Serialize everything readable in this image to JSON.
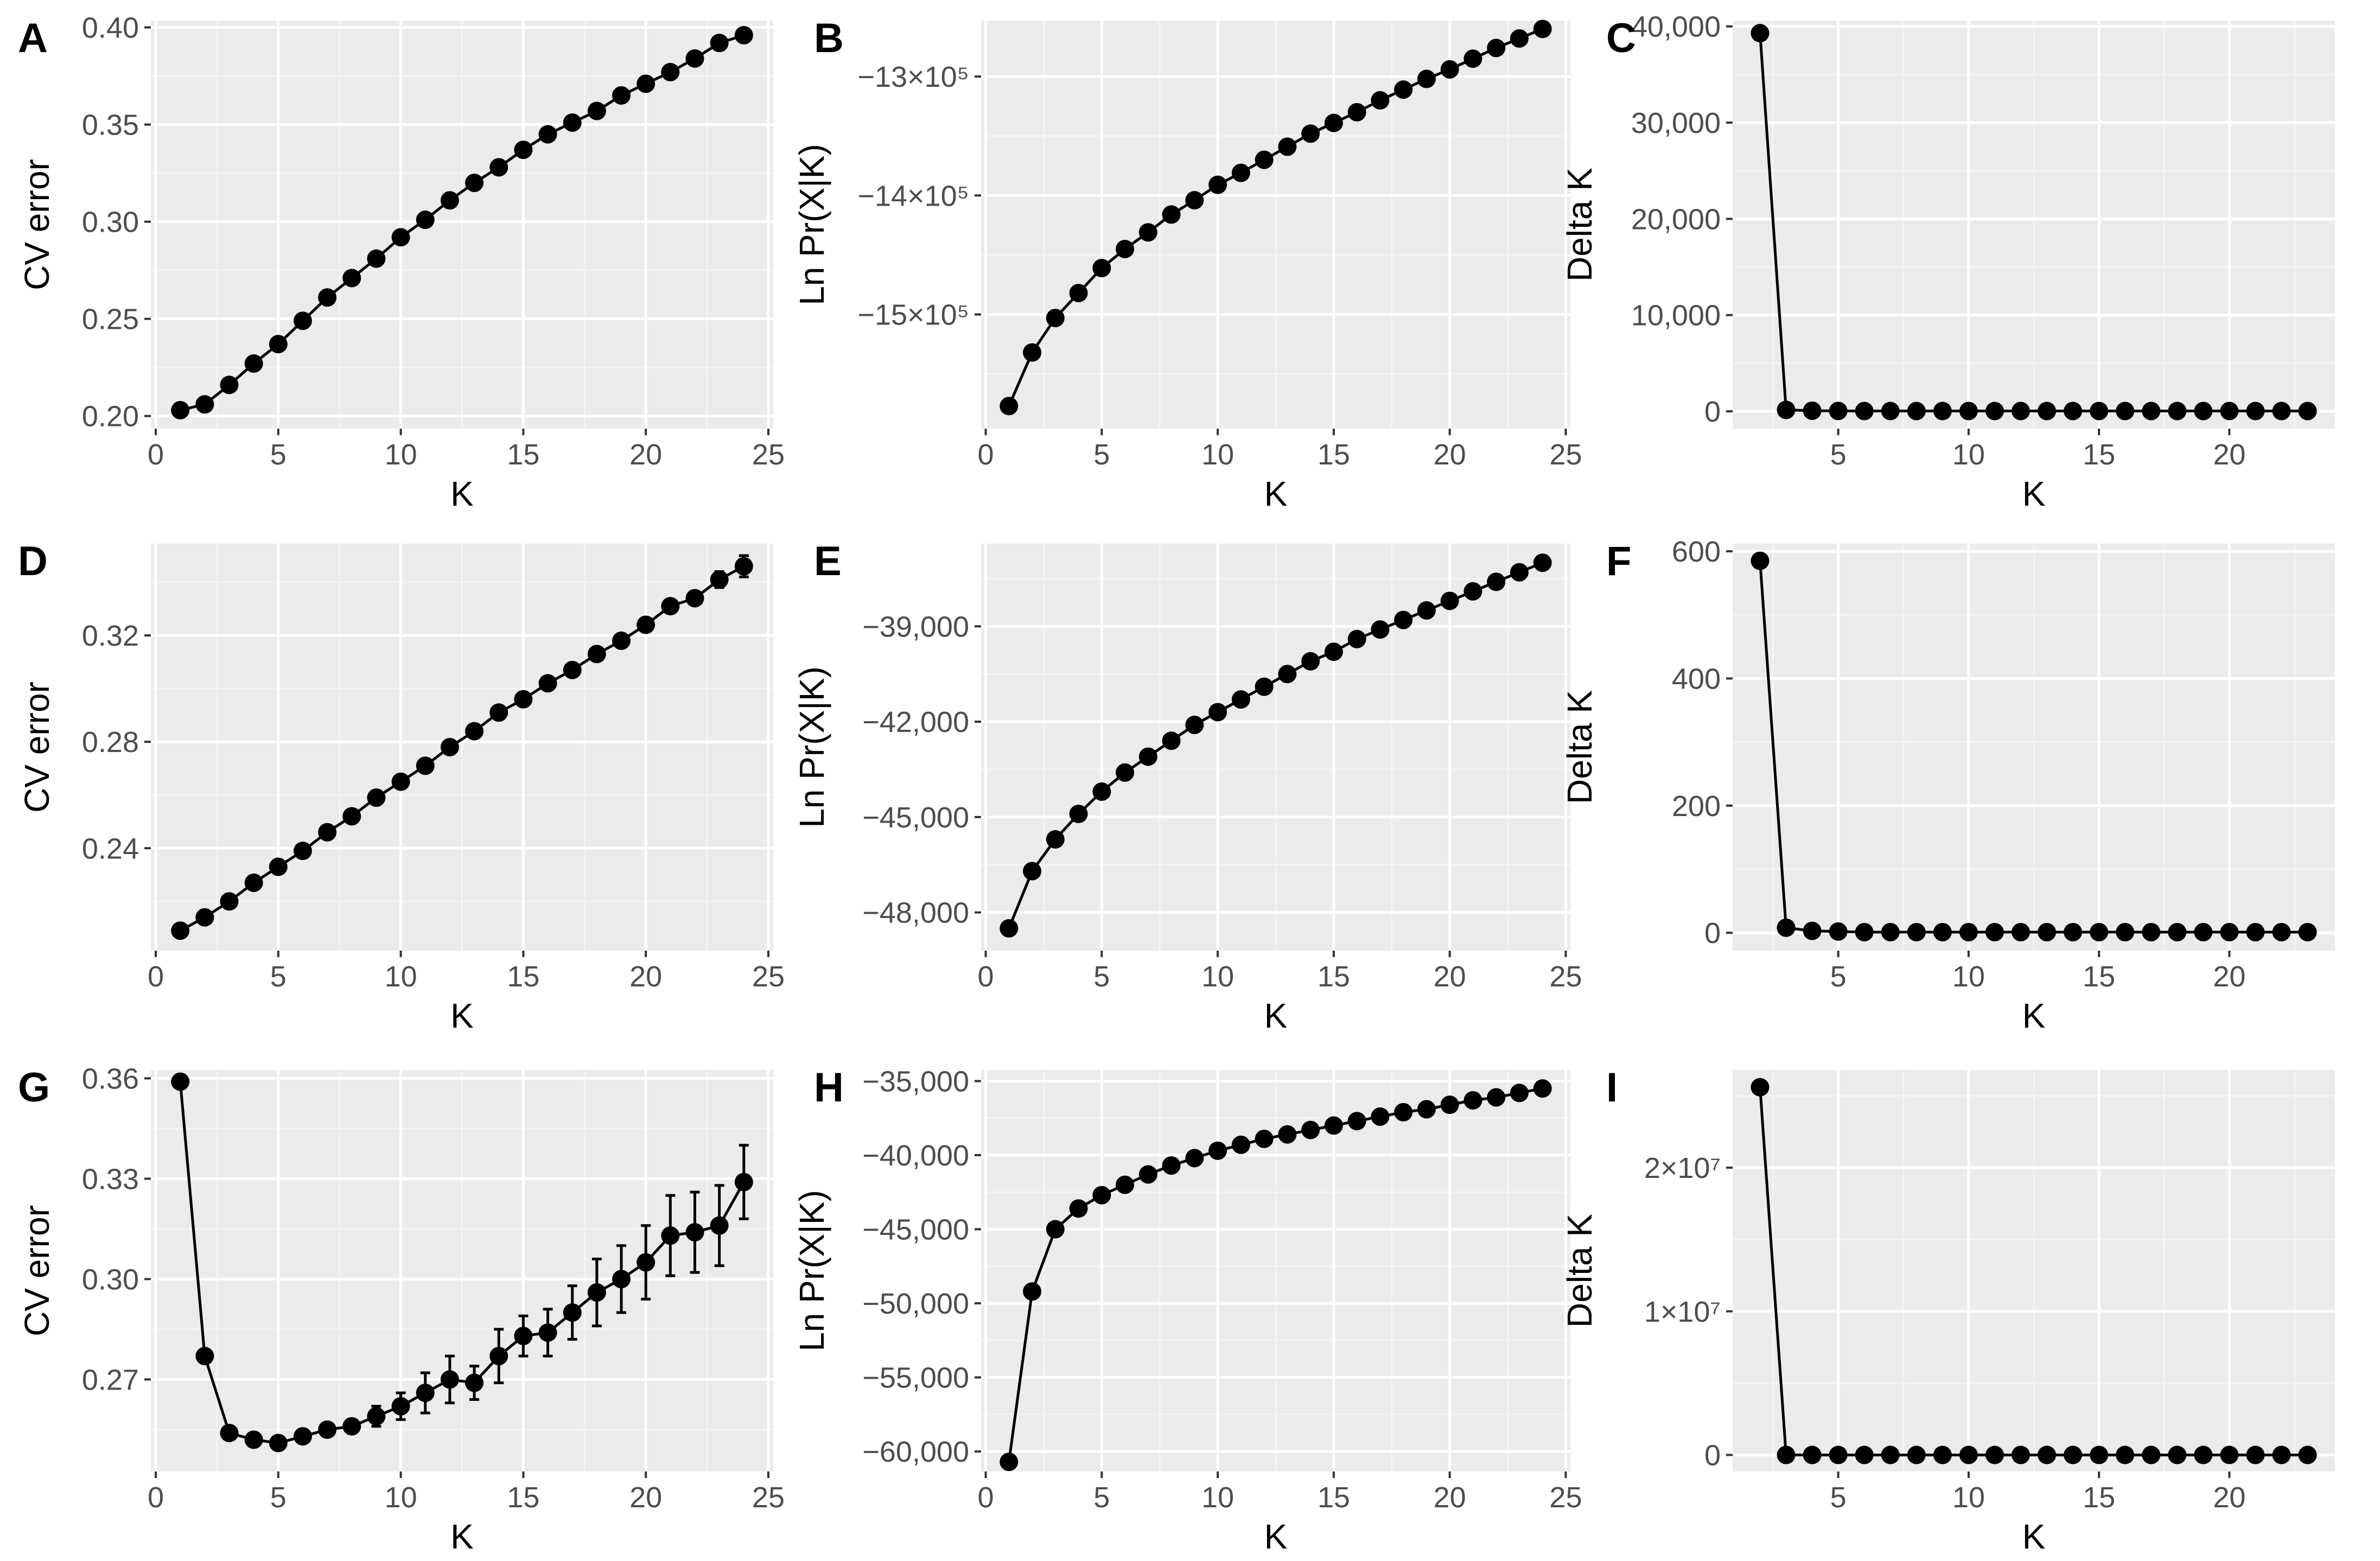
{
  "colors": {
    "panel_bg": "#ebebeb",
    "grid_major": "#ffffff",
    "grid_minor": "#f4f4f4",
    "mark": "#000000",
    "tick_text": "#4d4d4d"
  },
  "chart_data": [
    {
      "panel": "A",
      "type": "line",
      "xlabel": "K",
      "ylabel": "CV error",
      "xlim": [
        -0.2,
        25.2
      ],
      "ylim": [
        0.1935,
        0.4035
      ],
      "xticks": [
        0,
        5,
        10,
        15,
        20,
        25
      ],
      "xtick_labels": [
        "0",
        "5",
        "10",
        "15",
        "20",
        "25"
      ],
      "yticks": [
        0.2,
        0.25,
        0.3,
        0.35,
        0.4
      ],
      "ytick_labels": [
        "0.20",
        "0.25",
        "0.30",
        "0.35",
        "0.40"
      ],
      "x": [
        1,
        2,
        3,
        4,
        5,
        6,
        7,
        8,
        9,
        10,
        11,
        12,
        13,
        14,
        15,
        16,
        17,
        18,
        19,
        20,
        21,
        22,
        23,
        24
      ],
      "y": [
        0.203,
        0.206,
        0.216,
        0.227,
        0.237,
        0.249,
        0.261,
        0.271,
        0.281,
        0.292,
        0.301,
        0.311,
        0.32,
        0.328,
        0.337,
        0.345,
        0.351,
        0.357,
        0.365,
        0.371,
        0.377,
        0.384,
        0.392,
        0.396
      ]
    },
    {
      "panel": "B",
      "type": "line",
      "xlabel": "K",
      "ylabel": "Ln Pr(X|K)",
      "xlim": [
        -0.2,
        25.2
      ],
      "ylim": [
        -1596000,
        -1253000
      ],
      "xticks": [
        0,
        5,
        10,
        15,
        20,
        25
      ],
      "xtick_labels": [
        "0",
        "5",
        "10",
        "15",
        "20",
        "25"
      ],
      "yticks": [
        -1300000,
        -1400000,
        -1500000
      ],
      "ytick_labels": [
        "−13×10⁵",
        "−14×10⁵",
        "−15×10⁵"
      ],
      "x": [
        1,
        2,
        3,
        4,
        5,
        6,
        7,
        8,
        9,
        10,
        11,
        12,
        13,
        14,
        15,
        16,
        17,
        18,
        19,
        20,
        21,
        22,
        23,
        24
      ],
      "y": [
        -1577000,
        -1532000,
        -1503000,
        -1482000,
        -1461000,
        -1445000,
        -1431000,
        -1416000,
        -1404000,
        -1391000,
        -1381000,
        -1370000,
        -1359000,
        -1348000,
        -1339000,
        -1330000,
        -1320000,
        -1311000,
        -1302000,
        -1294000,
        -1285000,
        -1276000,
        -1268000,
        -1260000
      ]
    },
    {
      "panel": "C",
      "type": "line",
      "xlabel": "K",
      "ylabel": "Delta K",
      "xlim": [
        0.95,
        24.05
      ],
      "ylim": [
        -1800,
        40600
      ],
      "xticks": [
        5,
        10,
        15,
        20
      ],
      "xtick_labels": [
        "5",
        "10",
        "15",
        "20"
      ],
      "yticks": [
        0,
        10000,
        20000,
        30000,
        40000
      ],
      "ytick_labels": [
        "0",
        "10,000",
        "20,000",
        "30,000",
        "40,000"
      ],
      "x": [
        2,
        3,
        4,
        5,
        6,
        7,
        8,
        9,
        10,
        11,
        12,
        13,
        14,
        15,
        16,
        17,
        18,
        19,
        20,
        21,
        22,
        23
      ],
      "y": [
        39300,
        150,
        60,
        40,
        30,
        30,
        30,
        30,
        30,
        30,
        30,
        30,
        30,
        30,
        30,
        30,
        30,
        30,
        30,
        30,
        30,
        30
      ]
    },
    {
      "panel": "D",
      "type": "line",
      "xlabel": "K",
      "ylabel": "CV error",
      "xlim": [
        -0.2,
        25.2
      ],
      "ylim": [
        0.2015,
        0.3545
      ],
      "xticks": [
        0,
        5,
        10,
        15,
        20,
        25
      ],
      "xtick_labels": [
        "0",
        "5",
        "10",
        "15",
        "20",
        "25"
      ],
      "yticks": [
        0.24,
        0.28,
        0.32
      ],
      "ytick_labels": [
        "0.24",
        "0.28",
        "0.32"
      ],
      "x": [
        1,
        2,
        3,
        4,
        5,
        6,
        7,
        8,
        9,
        10,
        11,
        12,
        13,
        14,
        15,
        16,
        17,
        18,
        19,
        20,
        21,
        22,
        23,
        24
      ],
      "y": [
        0.209,
        0.214,
        0.22,
        0.227,
        0.233,
        0.239,
        0.246,
        0.252,
        0.259,
        0.265,
        0.271,
        0.278,
        0.284,
        0.291,
        0.296,
        0.302,
        0.307,
        0.313,
        0.318,
        0.324,
        0.331,
        0.334,
        0.341,
        0.346
      ],
      "error": [
        0.001,
        0.001,
        0.001,
        0.001,
        0.001,
        0.001,
        0.001,
        0.001,
        0.001,
        0.001,
        0.001,
        0.001,
        0.001,
        0.001,
        0.001,
        0.001,
        0.001,
        0.001,
        0.001,
        0.002,
        0.002,
        0.002,
        0.003,
        0.004
      ]
    },
    {
      "panel": "E",
      "type": "line",
      "xlabel": "K",
      "ylabel": "Ln Pr(X|K)",
      "xlim": [
        -0.2,
        25.2
      ],
      "ylim": [
        -49200,
        -36400
      ],
      "xticks": [
        0,
        5,
        10,
        15,
        20,
        25
      ],
      "xtick_labels": [
        "0",
        "5",
        "10",
        "15",
        "20",
        "25"
      ],
      "yticks": [
        -39000,
        -42000,
        -45000,
        -48000
      ],
      "ytick_labels": [
        "−39,000",
        "−42,000",
        "−45,000",
        "−48,000"
      ],
      "x": [
        1,
        2,
        3,
        4,
        5,
        6,
        7,
        8,
        9,
        10,
        11,
        12,
        13,
        14,
        15,
        16,
        17,
        18,
        19,
        20,
        21,
        22,
        23,
        24
      ],
      "y": [
        -48500,
        -46700,
        -45700,
        -44900,
        -44200,
        -43600,
        -43100,
        -42600,
        -42100,
        -41700,
        -41300,
        -40900,
        -40500,
        -40100,
        -39800,
        -39400,
        -39100,
        -38800,
        -38500,
        -38200,
        -37900,
        -37600,
        -37300,
        -37000
      ]
    },
    {
      "panel": "F",
      "type": "line",
      "xlabel": "K",
      "ylabel": "Delta K",
      "xlim": [
        0.95,
        24.05
      ],
      "ylim": [
        -28,
        612
      ],
      "xticks": [
        5,
        10,
        15,
        20
      ],
      "xtick_labels": [
        "5",
        "10",
        "15",
        "20"
      ],
      "yticks": [
        0,
        200,
        400,
        600
      ],
      "ytick_labels": [
        "0",
        "200",
        "400",
        "600"
      ],
      "x": [
        2,
        3,
        4,
        5,
        6,
        7,
        8,
        9,
        10,
        11,
        12,
        13,
        14,
        15,
        16,
        17,
        18,
        19,
        20,
        21,
        22,
        23
      ],
      "y": [
        585,
        8,
        3,
        2,
        1,
        1,
        1,
        1,
        1,
        1,
        1,
        1,
        1,
        1,
        1,
        1,
        1,
        1,
        1,
        1,
        1,
        1
      ]
    },
    {
      "panel": "G",
      "type": "line",
      "xlabel": "K",
      "ylabel": "CV error",
      "xlim": [
        -0.2,
        25.2
      ],
      "ylim": [
        0.2425,
        0.3625
      ],
      "xticks": [
        0,
        5,
        10,
        15,
        20,
        25
      ],
      "xtick_labels": [
        "0",
        "5",
        "10",
        "15",
        "20",
        "25"
      ],
      "yticks": [
        0.27,
        0.3,
        0.33,
        0.36
      ],
      "ytick_labels": [
        "0.27",
        "0.30",
        "0.33",
        "0.36"
      ],
      "x": [
        1,
        2,
        3,
        4,
        5,
        6,
        7,
        8,
        9,
        10,
        11,
        12,
        13,
        14,
        15,
        16,
        17,
        18,
        19,
        20,
        21,
        22,
        23,
        24
      ],
      "y": [
        0.359,
        0.277,
        0.254,
        0.252,
        0.251,
        0.253,
        0.255,
        0.256,
        0.259,
        0.262,
        0.266,
        0.27,
        0.269,
        0.277,
        0.283,
        0.284,
        0.29,
        0.296,
        0.3,
        0.305,
        0.313,
        0.314,
        0.316,
        0.329
      ],
      "error": [
        0.0,
        0.0,
        0.0,
        0.0,
        0.0,
        0.0,
        0.0,
        0.002,
        0.003,
        0.004,
        0.006,
        0.007,
        0.005,
        0.008,
        0.006,
        0.007,
        0.008,
        0.01,
        0.01,
        0.011,
        0.012,
        0.012,
        0.012,
        0.011
      ]
    },
    {
      "panel": "H",
      "type": "line",
      "xlabel": "K",
      "ylabel": "Ln Pr(X|K)",
      "xlim": [
        -0.2,
        25.2
      ],
      "ylim": [
        -61350,
        -34250
      ],
      "xticks": [
        0,
        5,
        10,
        15,
        20,
        25
      ],
      "xtick_labels": [
        "0",
        "5",
        "10",
        "15",
        "20",
        "25"
      ],
      "yticks": [
        -35000,
        -40000,
        -45000,
        -50000,
        -55000,
        -60000
      ],
      "ytick_labels": [
        "−35,000",
        "−40,000",
        "−45,000",
        "−50,000",
        "−55,000",
        "−60,000"
      ],
      "x": [
        1,
        2,
        3,
        4,
        5,
        6,
        7,
        8,
        9,
        10,
        11,
        12,
        13,
        14,
        15,
        16,
        17,
        18,
        19,
        20,
        21,
        22,
        23,
        24
      ],
      "y": [
        -60700,
        -49200,
        -45000,
        -43600,
        -42700,
        -42000,
        -41300,
        -40700,
        -40200,
        -39700,
        -39300,
        -38900,
        -38600,
        -38300,
        -38000,
        -37700,
        -37400,
        -37100,
        -36900,
        -36600,
        -36300,
        -36100,
        -35800,
        -35500
      ]
    },
    {
      "panel": "I",
      "type": "line",
      "xlabel": "K",
      "ylabel": "Delta K",
      "xlim": [
        0.95,
        24.05
      ],
      "ylim": [
        -1150000,
        26800000
      ],
      "xticks": [
        5,
        10,
        15,
        20
      ],
      "xtick_labels": [
        "5",
        "10",
        "15",
        "20"
      ],
      "yticks": [
        0,
        10000000,
        20000000
      ],
      "ytick_labels": [
        "0",
        "1×10⁷",
        "2×10⁷"
      ],
      "x": [
        2,
        3,
        4,
        5,
        6,
        7,
        8,
        9,
        10,
        11,
        12,
        13,
        14,
        15,
        16,
        17,
        18,
        19,
        20,
        21,
        22,
        23
      ],
      "y": [
        25600000,
        0,
        0,
        0,
        0,
        0,
        0,
        0,
        0,
        0,
        0,
        0,
        0,
        0,
        0,
        0,
        0,
        0,
        0,
        0,
        0,
        0
      ]
    }
  ]
}
